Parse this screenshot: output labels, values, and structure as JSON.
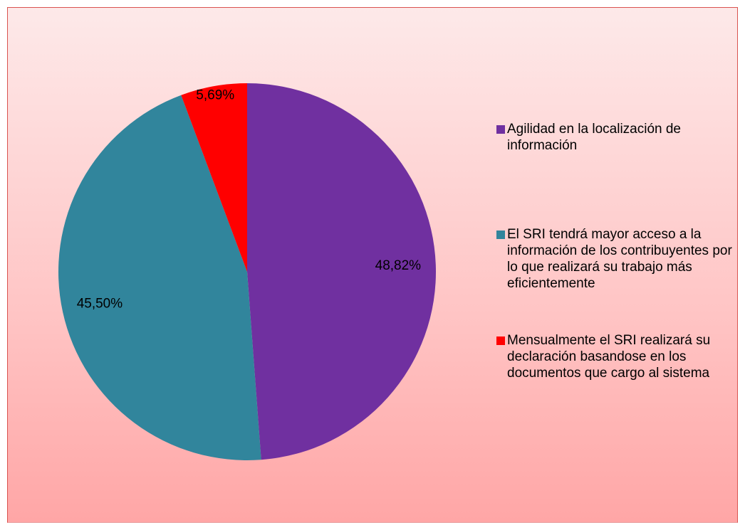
{
  "chart_data": {
    "type": "pie",
    "categories": [
      "Agilidad en la localización de información",
      "El SRI tendrá mayor acceso a la información de los contribuyentes por lo que realizará su trabajo más eficientemente",
      "Mensualmente el SRI realizará su declaración basandose en los documentos que cargo al sistema"
    ],
    "values": [
      48.82,
      45.5,
      5.69
    ],
    "value_labels": [
      "48,82%",
      "45,50%",
      "5,69%"
    ],
    "colors": [
      "#7030a0",
      "#31859c",
      "#ff0000"
    ],
    "legend": "right"
  }
}
